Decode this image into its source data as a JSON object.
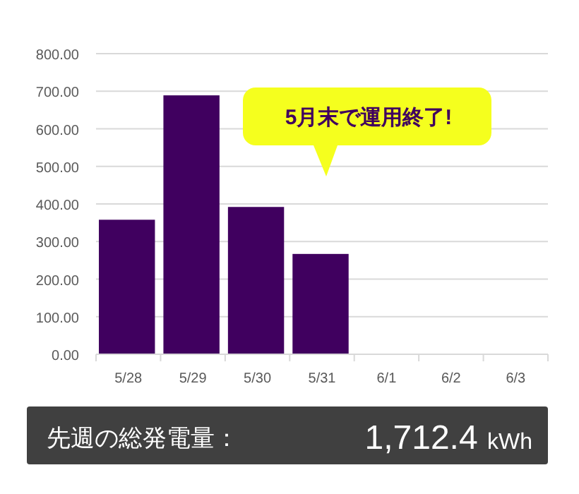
{
  "chart_data": {
    "type": "bar",
    "categories": [
      "5/28",
      "5/29",
      "5/30",
      "5/31",
      "6/1",
      "6/2",
      "6/3"
    ],
    "values": [
      358,
      689,
      392,
      267,
      null,
      null,
      null
    ],
    "color": "#40005f",
    "ylim": [
      0,
      800
    ],
    "yticks": [
      {
        "value": 0,
        "label": "0.00"
      },
      {
        "value": 100,
        "label": "100.00"
      },
      {
        "value": 200,
        "label": "200.00"
      },
      {
        "value": 300,
        "label": "300.00"
      },
      {
        "value": 400,
        "label": "400.00"
      },
      {
        "value": 500,
        "label": "500.00"
      },
      {
        "value": 600,
        "label": "600.00"
      },
      {
        "value": 700,
        "label": "700.00"
      },
      {
        "value": 800,
        "label": "800.00"
      }
    ],
    "grid": "y",
    "annotations": [
      "5月末で運用終了!",
      "先週の総発電量：",
      "1,712.4 kWh"
    ]
  }
}
